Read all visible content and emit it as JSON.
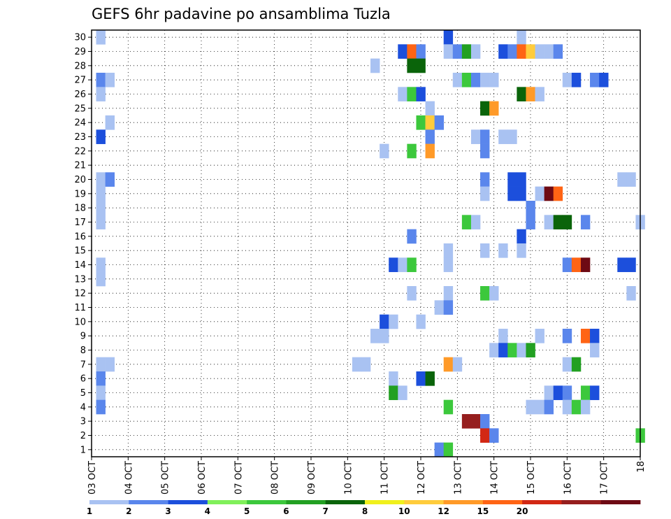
{
  "chart_data": {
    "type": "heatmap",
    "title": "GEFS 6hr padavine po ansamblima Tuzla",
    "x_labels": [
      "03 OCT",
      "04 OCT",
      "05 OCT",
      "06 OCT",
      "07 OCT",
      "08 OCT",
      "09 OCT",
      "10 OCT",
      "11 OCT",
      "12 OCT",
      "13 OCT",
      "14 OCT",
      "15 OCT",
      "16 OCT",
      "17 OCT",
      "18"
    ],
    "y_labels": [
      "1",
      "2",
      "3",
      "4",
      "5",
      "6",
      "7",
      "8",
      "9",
      "10",
      "11",
      "12",
      "13",
      "14",
      "15",
      "16",
      "17",
      "18",
      "19",
      "20",
      "21",
      "22",
      "23",
      "24",
      "25",
      "26",
      "27",
      "28",
      "29",
      "30"
    ],
    "xlim": [
      0,
      60
    ],
    "ylim": [
      0.5,
      30.5
    ],
    "grid": true,
    "legend_position": "bottom",
    "legend": {
      "labels": [
        "1",
        "2",
        "3",
        "4",
        "5",
        "6",
        "7",
        "8",
        "10",
        "12",
        "15",
        "20"
      ],
      "colors": [
        "#a9c2f2",
        "#5a86ec",
        "#1c4fdc",
        "#80f05a",
        "#3cc83c",
        "#22a022",
        "#0a640a",
        "#f0f01c",
        "#ffcc3c",
        "#ff9a28",
        "#ff6414",
        "#d22814",
        "#961e1e",
        "#6e0a14"
      ]
    },
    "units_note": "x index = 6-hour steps from 03 OCT 00Z; y = ensemble member; value = class index into legend colors",
    "cells": [
      [
        1,
        30,
        0
      ],
      [
        39,
        30,
        2
      ],
      [
        47,
        30,
        0
      ],
      [
        34,
        29,
        2
      ],
      [
        35,
        29,
        10
      ],
      [
        36,
        29,
        1
      ],
      [
        39,
        29,
        0
      ],
      [
        40,
        29,
        1
      ],
      [
        41,
        29,
        5
      ],
      [
        42,
        29,
        0
      ],
      [
        45,
        29,
        2
      ],
      [
        46,
        29,
        1
      ],
      [
        47,
        29,
        10
      ],
      [
        48,
        29,
        8
      ],
      [
        49,
        29,
        0
      ],
      [
        50,
        29,
        0
      ],
      [
        51,
        29,
        1
      ],
      [
        31,
        28,
        0
      ],
      [
        35,
        28,
        6
      ],
      [
        36,
        28,
        6
      ],
      [
        1,
        27,
        1
      ],
      [
        2,
        27,
        0
      ],
      [
        40,
        27,
        0
      ],
      [
        41,
        27,
        4
      ],
      [
        42,
        27,
        1
      ],
      [
        43,
        27,
        0
      ],
      [
        44,
        27,
        0
      ],
      [
        52,
        27,
        0
      ],
      [
        53,
        27,
        2
      ],
      [
        55,
        27,
        1
      ],
      [
        56,
        27,
        2
      ],
      [
        1,
        26,
        0
      ],
      [
        34,
        26,
        0
      ],
      [
        35,
        26,
        4
      ],
      [
        36,
        26,
        2
      ],
      [
        47,
        26,
        6
      ],
      [
        48,
        26,
        9
      ],
      [
        49,
        26,
        0
      ],
      [
        37,
        25,
        0
      ],
      [
        43,
        25,
        6
      ],
      [
        44,
        25,
        9
      ],
      [
        2,
        24,
        0
      ],
      [
        36,
        24,
        4
      ],
      [
        37,
        24,
        8
      ],
      [
        38,
        24,
        1
      ],
      [
        1,
        23,
        2
      ],
      [
        37,
        23,
        1
      ],
      [
        42,
        23,
        0
      ],
      [
        43,
        23,
        1
      ],
      [
        45,
        23,
        0
      ],
      [
        46,
        23,
        0
      ],
      [
        32,
        22,
        0
      ],
      [
        35,
        22,
        4
      ],
      [
        37,
        22,
        9
      ],
      [
        43,
        22,
        1
      ],
      [
        1,
        20,
        0
      ],
      [
        2,
        20,
        1
      ],
      [
        43,
        20,
        1
      ],
      [
        46,
        20,
        2
      ],
      [
        47,
        20,
        2
      ],
      [
        58,
        20,
        0
      ],
      [
        59,
        20,
        0
      ],
      [
        1,
        19,
        0
      ],
      [
        43,
        19,
        0
      ],
      [
        46,
        19,
        2
      ],
      [
        47,
        19,
        2
      ],
      [
        49,
        19,
        0
      ],
      [
        50,
        19,
        13
      ],
      [
        51,
        19,
        10
      ],
      [
        1,
        18,
        0
      ],
      [
        48,
        18,
        1
      ],
      [
        1,
        17,
        0
      ],
      [
        41,
        17,
        4
      ],
      [
        42,
        17,
        0
      ],
      [
        48,
        17,
        1
      ],
      [
        50,
        17,
        0
      ],
      [
        51,
        17,
        6
      ],
      [
        52,
        17,
        6
      ],
      [
        54,
        17,
        1
      ],
      [
        60,
        17,
        0
      ],
      [
        35,
        16,
        1
      ],
      [
        47,
        16,
        2
      ],
      [
        39,
        15,
        0
      ],
      [
        43,
        15,
        0
      ],
      [
        45,
        15,
        0
      ],
      [
        47,
        15,
        0
      ],
      [
        1,
        14,
        0
      ],
      [
        33,
        14,
        2
      ],
      [
        34,
        14,
        0
      ],
      [
        35,
        14,
        4
      ],
      [
        39,
        14,
        0
      ],
      [
        52,
        14,
        1
      ],
      [
        53,
        14,
        10
      ],
      [
        54,
        14,
        13
      ],
      [
        58,
        14,
        2
      ],
      [
        59,
        14,
        2
      ],
      [
        1,
        13,
        0
      ],
      [
        35,
        12,
        0
      ],
      [
        39,
        12,
        0
      ],
      [
        43,
        12,
        4
      ],
      [
        44,
        12,
        0
      ],
      [
        59,
        12,
        0
      ],
      [
        38,
        11,
        0
      ],
      [
        39,
        11,
        1
      ],
      [
        32,
        10,
        2
      ],
      [
        33,
        10,
        0
      ],
      [
        36,
        10,
        0
      ],
      [
        31,
        9,
        0
      ],
      [
        32,
        9,
        0
      ],
      [
        45,
        9,
        0
      ],
      [
        49,
        9,
        0
      ],
      [
        52,
        9,
        1
      ],
      [
        54,
        9,
        10
      ],
      [
        55,
        9,
        2
      ],
      [
        44,
        8,
        0
      ],
      [
        45,
        8,
        2
      ],
      [
        46,
        8,
        4
      ],
      [
        47,
        8,
        0
      ],
      [
        48,
        8,
        5
      ],
      [
        55,
        8,
        0
      ],
      [
        1,
        7,
        0
      ],
      [
        2,
        7,
        0
      ],
      [
        29,
        7,
        0
      ],
      [
        30,
        7,
        0
      ],
      [
        39,
        7,
        9
      ],
      [
        40,
        7,
        0
      ],
      [
        52,
        7,
        0
      ],
      [
        53,
        7,
        5
      ],
      [
        1,
        6,
        1
      ],
      [
        33,
        6,
        0
      ],
      [
        36,
        6,
        2
      ],
      [
        37,
        6,
        6
      ],
      [
        1,
        5,
        0
      ],
      [
        33,
        5,
        5
      ],
      [
        34,
        5,
        0
      ],
      [
        50,
        5,
        0
      ],
      [
        51,
        5,
        2
      ],
      [
        52,
        5,
        1
      ],
      [
        54,
        5,
        4
      ],
      [
        55,
        5,
        2
      ],
      [
        1,
        4,
        1
      ],
      [
        39,
        4,
        4
      ],
      [
        48,
        4,
        0
      ],
      [
        49,
        4,
        0
      ],
      [
        50,
        4,
        1
      ],
      [
        52,
        4,
        0
      ],
      [
        53,
        4,
        4
      ],
      [
        54,
        4,
        0
      ],
      [
        41,
        3,
        12
      ],
      [
        42,
        3,
        12
      ],
      [
        43,
        3,
        1
      ],
      [
        43,
        2,
        11
      ],
      [
        44,
        2,
        1
      ],
      [
        60,
        2,
        4
      ],
      [
        38,
        1,
        1
      ],
      [
        39,
        1,
        4
      ]
    ]
  }
}
